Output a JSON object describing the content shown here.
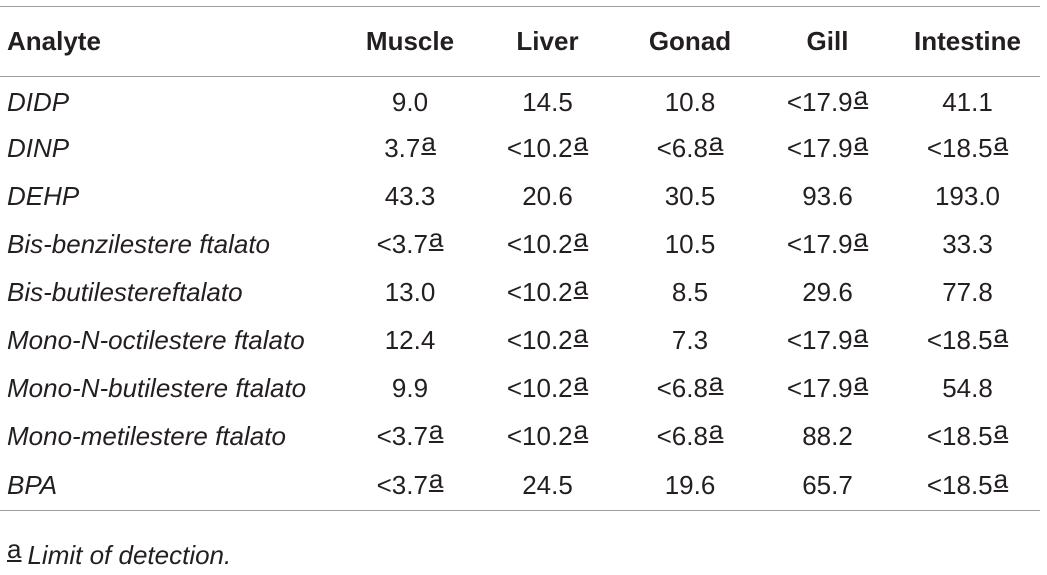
{
  "table": {
    "headers": [
      "Analyte",
      "Muscle",
      "Liver",
      "Gonad",
      "Gill",
      "Intestine"
    ],
    "rows": [
      {
        "analyte": "DIDP",
        "cells": [
          {
            "value": "9.0",
            "mark": ""
          },
          {
            "value": "14.5",
            "mark": ""
          },
          {
            "value": "10.8",
            "mark": ""
          },
          {
            "value": "<17.9",
            "mark": "a"
          },
          {
            "value": "41.1",
            "mark": ""
          }
        ]
      },
      {
        "analyte": "DINP",
        "cells": [
          {
            "value": "3.7",
            "mark": "a"
          },
          {
            "value": "<10.2",
            "mark": "a"
          },
          {
            "value": "<6.8",
            "mark": "a"
          },
          {
            "value": "<17.9",
            "mark": "a"
          },
          {
            "value": "<18.5",
            "mark": "a"
          }
        ]
      },
      {
        "analyte": "DEHP",
        "cells": [
          {
            "value": "43.3",
            "mark": ""
          },
          {
            "value": "20.6",
            "mark": ""
          },
          {
            "value": "30.5",
            "mark": ""
          },
          {
            "value": "93.6",
            "mark": ""
          },
          {
            "value": "193.0",
            "mark": ""
          }
        ]
      },
      {
        "analyte": "Bis-benzilestere ftalato",
        "cells": [
          {
            "value": "<3.7",
            "mark": "a"
          },
          {
            "value": "<10.2",
            "mark": "a"
          },
          {
            "value": "10.5",
            "mark": ""
          },
          {
            "value": "<17.9",
            "mark": "a"
          },
          {
            "value": "33.3",
            "mark": ""
          }
        ]
      },
      {
        "analyte": "Bis-butilestereftalato",
        "cells": [
          {
            "value": "13.0",
            "mark": ""
          },
          {
            "value": "<10.2",
            "mark": "a"
          },
          {
            "value": "8.5",
            "mark": ""
          },
          {
            "value": "29.6",
            "mark": ""
          },
          {
            "value": "77.8",
            "mark": ""
          }
        ]
      },
      {
        "analyte": "Mono-N-octilestere ftalato",
        "cells": [
          {
            "value": "12.4",
            "mark": ""
          },
          {
            "value": "<10.2",
            "mark": "a"
          },
          {
            "value": "7.3",
            "mark": ""
          },
          {
            "value": "<17.9",
            "mark": "a"
          },
          {
            "value": "<18.5",
            "mark": "a"
          }
        ]
      },
      {
        "analyte": "Mono-N-butilestere ftalato",
        "cells": [
          {
            "value": "9.9",
            "mark": ""
          },
          {
            "value": "<10.2",
            "mark": "a"
          },
          {
            "value": "<6.8",
            "mark": "a"
          },
          {
            "value": "<17.9",
            "mark": "a"
          },
          {
            "value": "54.8",
            "mark": ""
          }
        ]
      },
      {
        "analyte": "Mono-metilestere ftalato",
        "cells": [
          {
            "value": "<3.7",
            "mark": "a"
          },
          {
            "value": "<10.2",
            "mark": "a"
          },
          {
            "value": "<6.8",
            "mark": "a"
          },
          {
            "value": "88.2",
            "mark": ""
          },
          {
            "value": "<18.5",
            "mark": "a"
          }
        ]
      },
      {
        "analyte": "BPA",
        "cells": [
          {
            "value": "<3.7",
            "mark": "a"
          },
          {
            "value": "24.5",
            "mark": ""
          },
          {
            "value": "19.6",
            "mark": ""
          },
          {
            "value": "65.7",
            "mark": ""
          },
          {
            "value": "<18.5",
            "mark": "a"
          }
        ]
      }
    ]
  },
  "footnote": {
    "mark": "a",
    "text": "Limit of detection."
  }
}
